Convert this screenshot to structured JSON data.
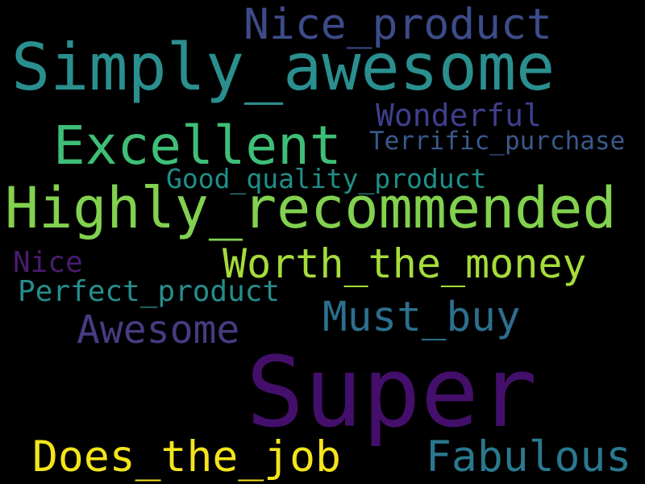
{
  "palette": "viridis",
  "background": "#000000",
  "words": [
    {
      "text": "Super",
      "color": "#440f6b"
    },
    {
      "text": "Simply_awesome",
      "color": "#2a8f8e"
    },
    {
      "text": "Highly_recommended",
      "color": "#82d14f"
    },
    {
      "text": "Excellent",
      "color": "#3fbe77"
    },
    {
      "text": "Worth_the_money",
      "color": "#a6dc3a"
    },
    {
      "text": "Nice_product",
      "color": "#3d4b89"
    },
    {
      "text": "Does_the_job",
      "color": "#f3e41c"
    },
    {
      "text": "Fabulous",
      "color": "#2a788e"
    },
    {
      "text": "Must_buy",
      "color": "#2c6f8e"
    },
    {
      "text": "Awesome",
      "color": "#473b82"
    },
    {
      "text": "Wonderful",
      "color": "#3f3f8c"
    },
    {
      "text": "Perfect_product",
      "color": "#268e8c"
    },
    {
      "text": "Good_quality_product",
      "color": "#1f8f88"
    },
    {
      "text": "Terrific_purchase",
      "color": "#39598c"
    },
    {
      "text": "Nice",
      "color": "#481c6e"
    }
  ]
}
